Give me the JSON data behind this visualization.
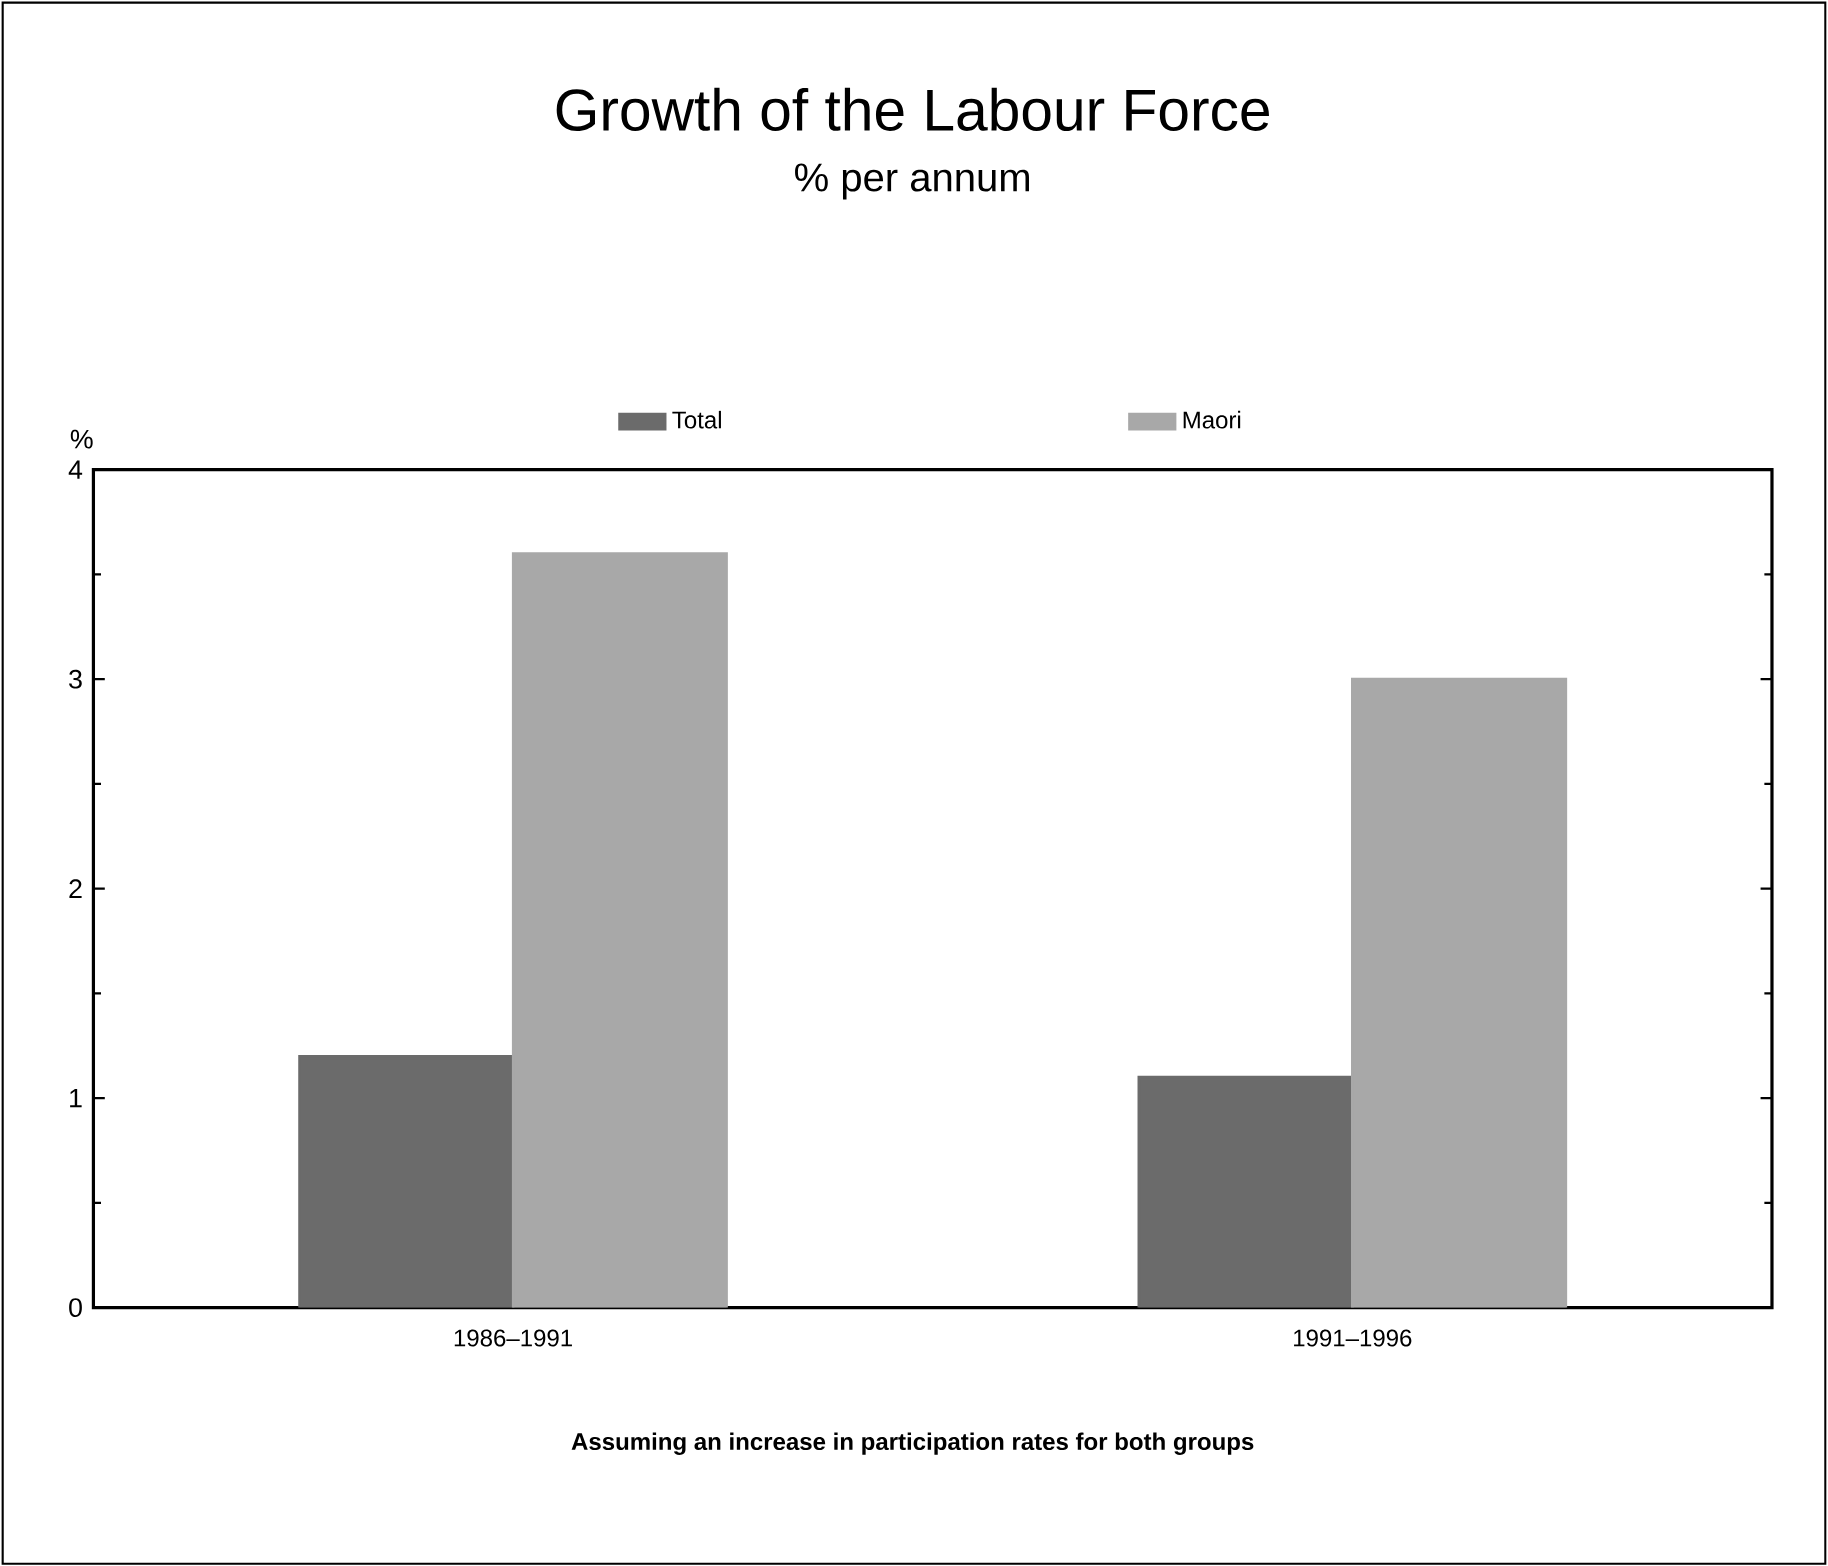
{
  "chart_data": {
    "type": "bar",
    "title": "Growth of the Labour Force",
    "subtitle": "% per annum",
    "ylabel": "%",
    "categories": [
      "1986–1991",
      "1991–1996"
    ],
    "series": [
      {
        "name": "Total",
        "color": "#6b6b6b",
        "values": [
          1.2,
          1.1
        ]
      },
      {
        "name": "Maori",
        "color": "#a8a8a8",
        "values": [
          3.6,
          3.0
        ]
      }
    ],
    "ylim": [
      0,
      4
    ],
    "yticks": [
      0,
      1,
      2,
      3,
      4
    ],
    "legend": "top",
    "grid": false,
    "annotations": [
      "Assuming an increase in participation rates for both groups"
    ]
  }
}
